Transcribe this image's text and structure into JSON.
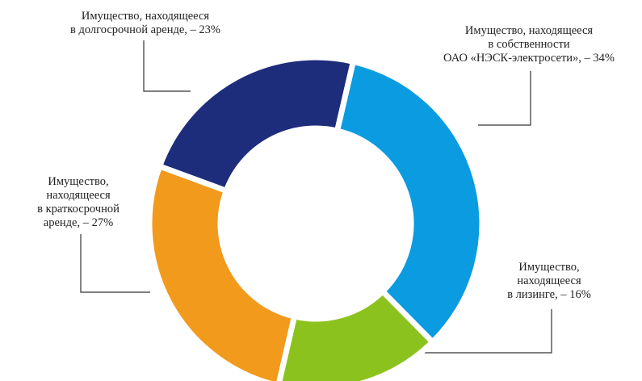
{
  "chart_data": {
    "type": "donut",
    "categories": [
      [
        "Имущество, находящееся",
        "в собственности",
        "ОАО «НЭСК-электросети», –"
      ],
      [
        "Имущество,",
        "находящееся",
        "в  лизинге, –"
      ],
      [
        "Имущество,",
        "находящееся",
        "в краткосрочной",
        "аренде, –"
      ],
      [
        "Имущество, находящееся",
        "в долгосрочной аренде, –"
      ]
    ],
    "values": [
      34,
      16,
      27,
      23
    ],
    "value_labels": [
      "34%",
      "16%",
      "27%",
      "23%"
    ],
    "colors": [
      "#0a9be0",
      "#8cc21e",
      "#f29a1c",
      "#1e2c7c"
    ]
  }
}
